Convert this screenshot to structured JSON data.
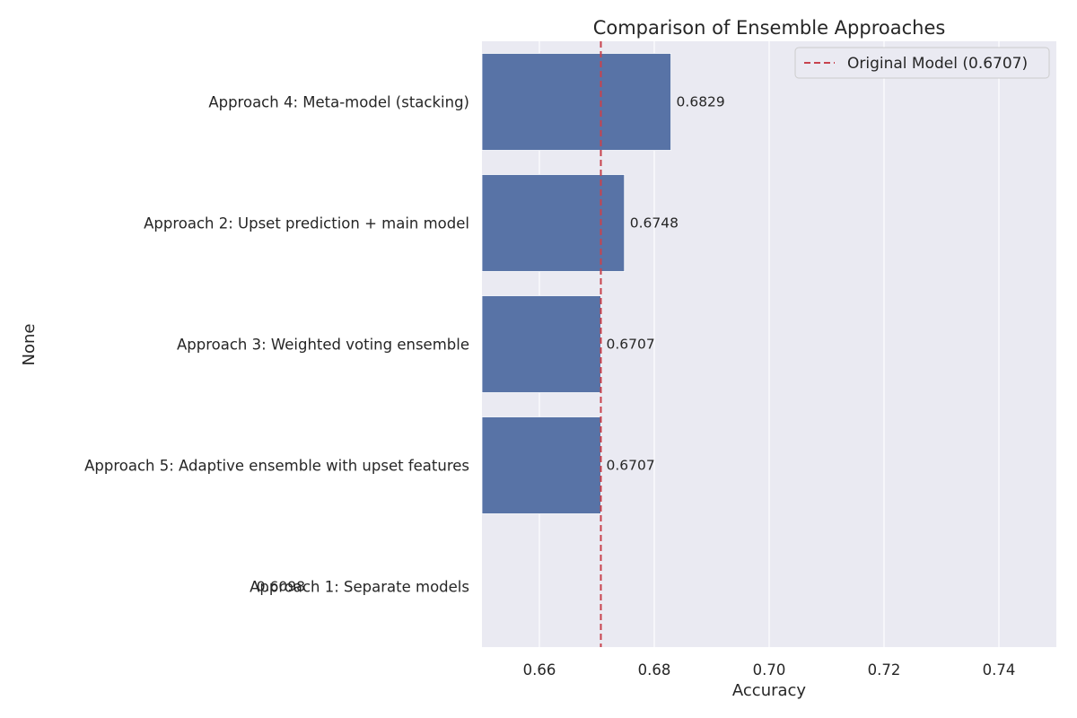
{
  "chart_data": {
    "type": "bar",
    "orientation": "horizontal",
    "title": "Comparison of Ensemble Approaches",
    "xlabel": "Accuracy",
    "ylabel": "None",
    "categories": [
      "Approach 4: Meta-model (stacking)",
      "Approach 2: Upset prediction + main model",
      "Approach 3: Weighted voting ensemble",
      "Approach 5: Adaptive ensemble with upset features",
      "Approach 1: Separate models"
    ],
    "values": [
      0.6829,
      0.6748,
      0.6707,
      0.6707,
      0.6098
    ],
    "value_labels": [
      "0.6829",
      "0.6748",
      "0.6707",
      "0.6707",
      "0.6098"
    ],
    "xlim": [
      0.65,
      0.75
    ],
    "xticks": [
      0.66,
      0.68,
      0.7,
      0.72,
      0.74
    ],
    "xtick_labels": [
      "0.66",
      "0.68",
      "0.70",
      "0.72",
      "0.74"
    ],
    "reference_line": {
      "value": 0.6707,
      "label": "Original Model (0.6707)",
      "style": "dashed"
    },
    "legend_placement": "top-right",
    "grid": true,
    "colors": {
      "bar": "#5873a6",
      "reference": "#c8424d",
      "background": "#eaeaf2",
      "grid": "#ffffff"
    }
  }
}
